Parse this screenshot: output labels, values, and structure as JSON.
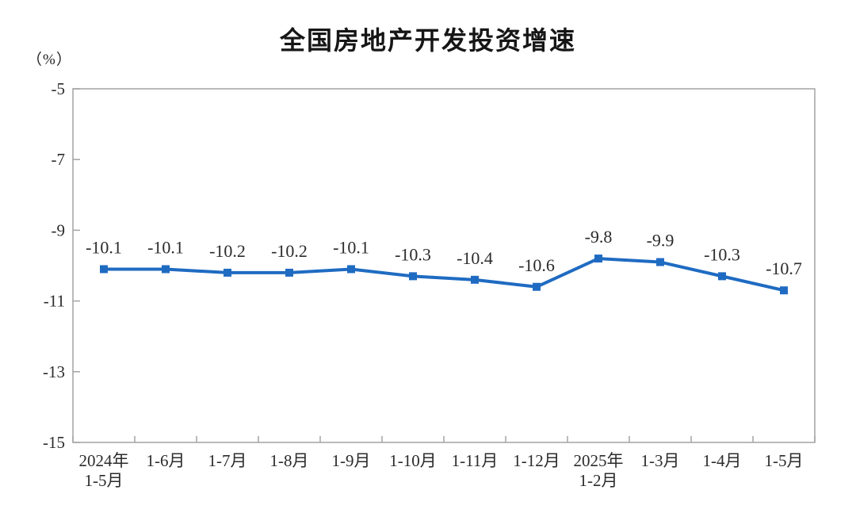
{
  "chart_data": {
    "type": "line",
    "title": "全国房地产开发投资增速",
    "unit_label": "（%）",
    "categories": [
      "2024年\n1-5月",
      "1-6月",
      "1-7月",
      "1-8月",
      "1-9月",
      "1-10月",
      "1-11月",
      "1-12月",
      "2025年\n1-2月",
      "1-3月",
      "1-4月",
      "1-5月"
    ],
    "values": [
      -10.1,
      -10.1,
      -10.2,
      -10.2,
      -10.1,
      -10.3,
      -10.4,
      -10.6,
      -9.8,
      -9.9,
      -10.3,
      -10.7
    ],
    "data_labels": [
      "-10.1",
      "-10.1",
      "-10.2",
      "-10.2",
      "-10.1",
      "-10.3",
      "-10.4",
      "-10.6",
      "-9.8",
      "-9.9",
      "-10.3",
      "-10.7"
    ],
    "xlabel": "",
    "ylabel": "（%）",
    "ylim": [
      -15,
      -5
    ],
    "yticks": [
      -5,
      -7,
      -9,
      -11,
      -13,
      -15
    ],
    "grid": false,
    "legend_position": "none",
    "marker": "square",
    "colors": {
      "line": "#1f6bc2",
      "marker": "#1f6bc2",
      "axis": "#a3a3a3",
      "text": "#2b2b2b",
      "title": "#161616",
      "background": "#ffffff"
    }
  }
}
